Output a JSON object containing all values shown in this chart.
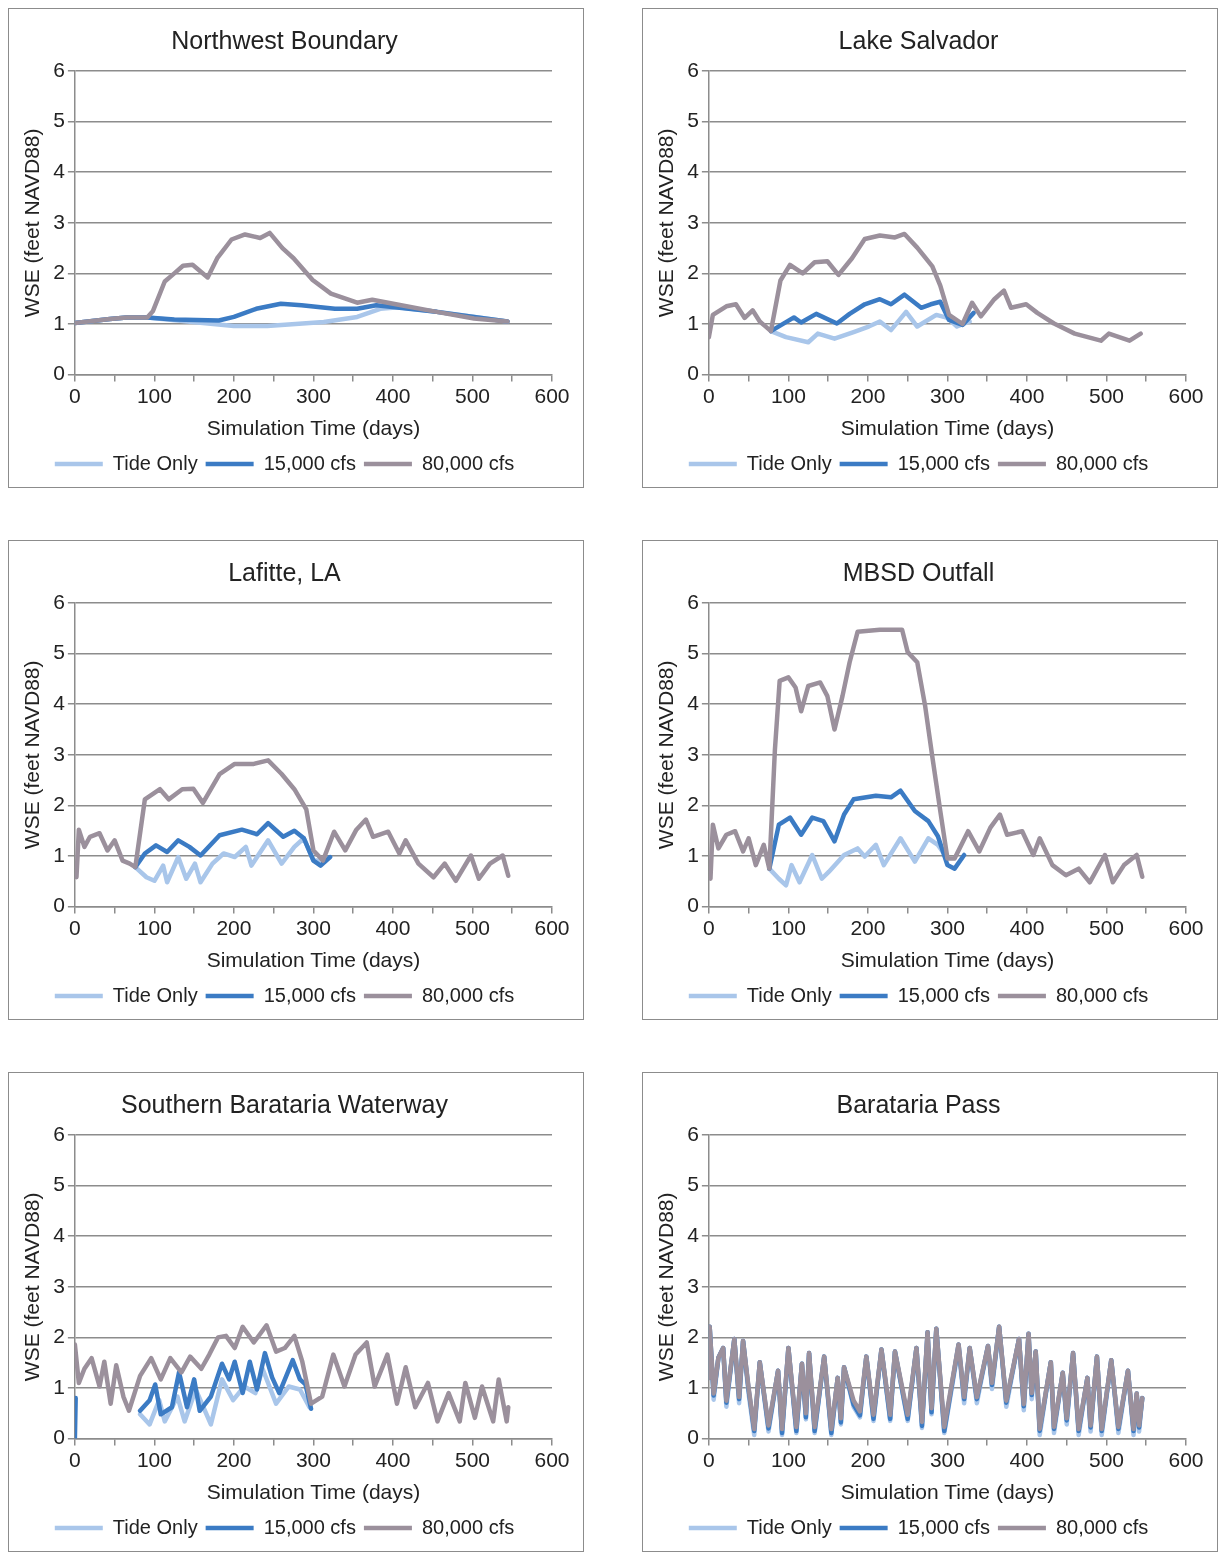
{
  "chart_data": [
    {
      "type": "line",
      "title": "Northwest Boundary",
      "xlabel": "Simulation Time (days)",
      "ylabel": "WSE (feet NAVD88)",
      "xlim": [
        0,
        600
      ],
      "xticks": [
        0,
        {
          "value": 50,
          "label": null
        },
        100,
        {
          "value": 150,
          "label": null
        },
        200,
        {
          "value": 250,
          "label": null
        },
        300,
        {
          "value": 350,
          "label": null
        },
        400,
        {
          "value": 450,
          "label": null
        },
        500,
        {
          "value": 550,
          "label": null
        },
        600
      ],
      "ylim": [
        0,
        6
      ],
      "yticks": [
        0,
        1,
        2,
        3,
        4,
        5,
        6
      ],
      "grid": "y",
      "legend": "bottom",
      "series": [
        {
          "name": "Tide Only",
          "color": "#a9c6ea",
          "x": [
            0,
            44,
            65,
            91,
            148,
            200,
            242,
            313,
            355,
            384,
            407,
            455,
            544
          ],
          "values": [
            1.02,
            1.1,
            1.13,
            1.13,
            1.04,
            0.96,
            0.96,
            1.04,
            1.14,
            1.3,
            1.33,
            1.24,
            1.05
          ]
        },
        {
          "name": "15,000 cfs",
          "color": "#3b7bc4",
          "x": [
            0,
            44,
            65,
            91,
            125,
            181,
            200,
            228,
            259,
            285,
            327,
            355,
            379,
            455,
            544
          ],
          "values": [
            1.02,
            1.1,
            1.13,
            1.13,
            1.09,
            1.07,
            1.14,
            1.3,
            1.4,
            1.37,
            1.3,
            1.3,
            1.37,
            1.24,
            1.05
          ]
        },
        {
          "name": "80,000 cfs",
          "color": "#9b909c",
          "x": [
            0,
            44,
            65,
            91,
            98,
            113,
            125,
            136,
            148,
            167,
            179,
            197,
            214,
            233,
            245,
            261,
            275,
            299,
            322,
            355,
            374,
            407,
            455,
            502,
            544
          ],
          "values": [
            1.02,
            1.1,
            1.13,
            1.13,
            1.25,
            1.84,
            2.0,
            2.15,
            2.17,
            1.92,
            2.3,
            2.67,
            2.77,
            2.7,
            2.8,
            2.5,
            2.3,
            1.87,
            1.6,
            1.42,
            1.48,
            1.38,
            1.24,
            1.11,
            1.05
          ]
        }
      ]
    },
    {
      "type": "line",
      "title": "Lake Salvador",
      "xlabel": "Simulation Time (days)",
      "ylabel": "WSE (feet NAVD88)",
      "xlim": [
        0,
        600
      ],
      "xticks": [
        0,
        {
          "value": 50,
          "label": null
        },
        100,
        {
          "value": 150,
          "label": null
        },
        200,
        {
          "value": 250,
          "label": null
        },
        300,
        {
          "value": 350,
          "label": null
        },
        400,
        {
          "value": 450,
          "label": null
        },
        500,
        {
          "value": 550,
          "label": null
        },
        600
      ],
      "ylim": [
        0,
        6
      ],
      "yticks": [
        0,
        1,
        2,
        3,
        4,
        5,
        6
      ],
      "grid": "y",
      "legend": "bottom",
      "series": [
        {
          "name": "Tide Only",
          "color": "#a9c6ea",
          "x": [
            78,
            97,
            125,
            137,
            158,
            182,
            201,
            215,
            229,
            248,
            262,
            286,
            300,
            312,
            328
          ],
          "values": [
            0.86,
            0.74,
            0.64,
            0.81,
            0.71,
            0.84,
            0.95,
            1.05,
            0.88,
            1.24,
            0.95,
            1.18,
            1.12,
            0.95,
            1.05
          ]
        },
        {
          "name": "15,000 cfs",
          "color": "#3b7bc4",
          "x": [
            78,
            107,
            116,
            135,
            161,
            177,
            196,
            215,
            229,
            246,
            267,
            279,
            291,
            302,
            319,
            333
          ],
          "values": [
            0.86,
            1.13,
            1.03,
            1.2,
            1.01,
            1.2,
            1.39,
            1.49,
            1.39,
            1.58,
            1.32,
            1.39,
            1.44,
            1.08,
            0.98,
            1.22
          ]
        },
        {
          "name": "80,000 cfs",
          "color": "#9b909c",
          "x": [
            0,
            5,
            22,
            34,
            45,
            55,
            64,
            78,
            90,
            102,
            118,
            133,
            149,
            163,
            180,
            196,
            215,
            234,
            246,
            262,
            281,
            291,
            302,
            319,
            331,
            342,
            359,
            371,
            380,
            399,
            413,
            434,
            460,
            493,
            503,
            529,
            543
          ],
          "values": [
            0.74,
            1.18,
            1.35,
            1.39,
            1.12,
            1.27,
            1.05,
            0.86,
            1.86,
            2.17,
            2.0,
            2.22,
            2.24,
            1.97,
            2.3,
            2.68,
            2.75,
            2.71,
            2.78,
            2.51,
            2.14,
            1.76,
            1.18,
            1.0,
            1.42,
            1.15,
            1.49,
            1.66,
            1.32,
            1.39,
            1.22,
            1.01,
            0.81,
            0.67,
            0.81,
            0.67,
            0.81
          ]
        }
      ]
    },
    {
      "type": "line",
      "title": "Lafitte, LA",
      "xlabel": "Simulation Time (days)",
      "ylabel": "WSE (feet NAVD88)",
      "xlim": [
        0,
        600
      ],
      "xticks": [
        0,
        {
          "value": 50,
          "label": null
        },
        100,
        {
          "value": 150,
          "label": null
        },
        200,
        {
          "value": 250,
          "label": null
        },
        300,
        {
          "value": 350,
          "label": null
        },
        400,
        {
          "value": 450,
          "label": null
        },
        500,
        {
          "value": 550,
          "label": null
        },
        600
      ],
      "ylim": [
        0,
        6
      ],
      "yticks": [
        0,
        1,
        2,
        3,
        4,
        5,
        6
      ],
      "grid": "y",
      "legend": "bottom",
      "series": [
        {
          "name": "Tide Only",
          "color": "#a9c6ea",
          "x": [
            76,
            90,
            100,
            111,
            116,
            130,
            140,
            151,
            158,
            173,
            187,
            201,
            215,
            222,
            243,
            260,
            276,
            288,
            300,
            312
          ],
          "values": [
            0.78,
            0.58,
            0.51,
            0.81,
            0.48,
            0.98,
            0.55,
            0.85,
            0.48,
            0.85,
            1.05,
            0.98,
            1.18,
            0.81,
            1.31,
            0.85,
            1.18,
            1.35,
            0.91,
            0.91
          ]
        },
        {
          "name": "15,000 cfs",
          "color": "#3b7bc4",
          "x": [
            76,
            88,
            102,
            116,
            130,
            144,
            158,
            182,
            210,
            229,
            243,
            262,
            276,
            288,
            300,
            309,
            321
          ],
          "values": [
            0.78,
            1.05,
            1.21,
            1.08,
            1.31,
            1.18,
            1.01,
            1.41,
            1.52,
            1.43,
            1.65,
            1.38,
            1.5,
            1.35,
            0.91,
            0.81,
            0.98
          ]
        },
        {
          "name": "80,000 cfs",
          "color": "#9b909c",
          "x": [
            2,
            5,
            12,
            19,
            31,
            41,
            50,
            60,
            69,
            76,
            88,
            107,
            118,
            135,
            149,
            161,
            182,
            201,
            225,
            243,
            260,
            276,
            291,
            300,
            312,
            326,
            340,
            354,
            366,
            375,
            394,
            408,
            416,
            432,
            451,
            465,
            479,
            498,
            508,
            522,
            538,
            545
          ],
          "values": [
            0.58,
            1.52,
            1.18,
            1.38,
            1.45,
            1.11,
            1.31,
            0.91,
            0.85,
            0.78,
            2.12,
            2.32,
            2.12,
            2.32,
            2.33,
            2.05,
            2.62,
            2.82,
            2.82,
            2.89,
            2.62,
            2.32,
            1.92,
            1.11,
            0.91,
            1.48,
            1.11,
            1.52,
            1.72,
            1.38,
            1.48,
            1.05,
            1.31,
            0.85,
            0.58,
            0.85,
            0.51,
            1.01,
            0.55,
            0.85,
            1.01,
            0.61
          ]
        }
      ]
    },
    {
      "type": "line",
      "title": "MBSD Outfall",
      "xlabel": "Simulation Time (days)",
      "ylabel": "WSE (feet NAVD88)",
      "xlim": [
        0,
        600
      ],
      "xticks": [
        0,
        {
          "value": 50,
          "label": null
        },
        100,
        {
          "value": 150,
          "label": null
        },
        200,
        {
          "value": 250,
          "label": null
        },
        300,
        {
          "value": 350,
          "label": null
        },
        400,
        {
          "value": 450,
          "label": null
        },
        500,
        {
          "value": 550,
          "label": null
        },
        600
      ],
      "ylim": [
        0,
        6
      ],
      "yticks": [
        0,
        1,
        2,
        3,
        4,
        5,
        6
      ],
      "grid": "y",
      "legend": "bottom",
      "series": [
        {
          "name": "Tide Only",
          "color": "#a9c6ea",
          "x": [
            76,
            88,
            97,
            104,
            114,
            130,
            142,
            151,
            170,
            187,
            196,
            210,
            220,
            241,
            259,
            276,
            288,
            300
          ],
          "values": [
            0.75,
            0.55,
            0.42,
            0.82,
            0.48,
            1.02,
            0.55,
            0.69,
            1.02,
            1.15,
            0.99,
            1.22,
            0.82,
            1.35,
            0.89,
            1.35,
            1.22,
            0.95
          ]
        },
        {
          "name": "15,000 cfs",
          "color": "#3b7bc4",
          "x": [
            76,
            88,
            102,
            116,
            130,
            144,
            158,
            170,
            182,
            210,
            229,
            241,
            259,
            276,
            288,
            300,
            309,
            321
          ],
          "values": [
            0.75,
            1.62,
            1.76,
            1.42,
            1.76,
            1.69,
            1.29,
            1.82,
            2.12,
            2.19,
            2.16,
            2.29,
            1.89,
            1.69,
            1.39,
            0.82,
            0.75,
            1.02
          ]
        },
        {
          "name": "80,000 cfs",
          "color": "#9b909c",
          "x": [
            2,
            5,
            12,
            22,
            33,
            43,
            50,
            59,
            69,
            76,
            83,
            89,
            100,
            109,
            116,
            125,
            140,
            149,
            158,
            168,
            177,
            187,
            215,
            243,
            250,
            262,
            272,
            281,
            291,
            300,
            309,
            326,
            340,
            354,
            366,
            375,
            394,
            408,
            416,
            432,
            449,
            465,
            479,
            498,
            508,
            522,
            538,
            545
          ],
          "values": [
            0.55,
            1.62,
            1.15,
            1.42,
            1.49,
            1.09,
            1.35,
            0.82,
            1.22,
            0.75,
            3.09,
            4.46,
            4.53,
            4.33,
            3.86,
            4.36,
            4.43,
            4.16,
            3.5,
            4.16,
            4.83,
            5.43,
            5.47,
            5.47,
            5.03,
            4.83,
            3.96,
            2.96,
            1.89,
            0.95,
            0.95,
            1.49,
            1.09,
            1.56,
            1.82,
            1.42,
            1.49,
            1.02,
            1.35,
            0.82,
            0.62,
            0.75,
            0.48,
            1.02,
            0.48,
            0.82,
            1.02,
            0.59
          ]
        }
      ]
    },
    {
      "type": "line",
      "title": "Southern Barataria Waterway",
      "xlabel": "Simulation Time (days)",
      "ylabel": "WSE (feet NAVD88)",
      "xlim": [
        0,
        600
      ],
      "xticks": [
        0,
        {
          "value": 50,
          "label": null
        },
        100,
        {
          "value": 150,
          "label": null
        },
        200,
        {
          "value": 250,
          "label": null
        },
        300,
        {
          "value": 350,
          "label": null
        },
        400,
        {
          "value": 450,
          "label": null
        },
        500,
        {
          "value": 550,
          "label": null
        },
        600
      ],
      "ylim": [
        0,
        6
      ],
      "yticks": [
        0,
        1,
        2,
        3,
        4,
        5,
        6
      ],
      "grid": "y",
      "legend": "bottom",
      "series": [
        {
          "name": "Tide Only",
          "color": "#a9c6ea",
          "x": [
            82,
            94,
            106,
            113,
            129,
            138,
            152,
            171,
            185,
            199,
            213,
            227,
            236,
            253,
            269,
            283,
            295
          ],
          "values": [
            0.48,
            0.28,
            0.76,
            0.34,
            0.83,
            0.34,
            0.97,
            0.28,
            1.17,
            0.76,
            1.03,
            0.9,
            1.38,
            0.69,
            1.03,
            0.97,
            0.62
          ]
        },
        {
          "name": "15,000 cfs",
          "color": "#3b7bc4",
          "x": [
            0,
            1,
            2,
            82,
            94,
            101,
            108,
            122,
            131,
            141,
            150,
            157,
            171,
            185,
            194,
            201,
            211,
            220,
            229,
            239,
            248,
            257,
            274,
            283,
            290,
            297
          ],
          "values": [
            0,
            0.8,
            null,
            0.55,
            0.76,
            1.07,
            0.48,
            0.62,
            1.31,
            0.62,
            1.17,
            0.55,
            0.83,
            1.48,
            1.17,
            1.52,
            0.9,
            1.52,
            0.97,
            1.69,
            1.21,
            0.9,
            1.55,
            1.17,
            1.07,
            0.59
          ]
        },
        {
          "name": "80,000 cfs",
          "color": "#9b909c",
          "x": [
            0,
            5,
            12,
            21,
            31,
            37,
            45,
            52,
            61,
            68,
            82,
            96,
            108,
            120,
            134,
            145,
            159,
            169,
            180,
            190,
            201,
            211,
            225,
            241,
            253,
            264,
            276,
            286,
            297,
            311,
            325,
            339,
            353,
            367,
            377,
            393,
            405,
            416,
            428,
            444,
            456,
            470,
            484,
            491,
            503,
            512,
            526,
            533,
            543,
            545
          ],
          "values": [
            1.86,
            1.1,
            1.38,
            1.59,
            1.03,
            1.52,
            0.69,
            1.45,
            0.83,
            0.55,
            1.24,
            1.59,
            1.17,
            1.59,
            1.31,
            1.62,
            1.38,
            1.66,
            2.0,
            2.03,
            1.79,
            2.21,
            1.9,
            2.24,
            1.72,
            1.79,
            2.03,
            1.52,
            0.69,
            0.83,
            1.66,
            1.03,
            1.66,
            1.9,
            1.03,
            1.66,
            0.69,
            1.41,
            0.62,
            1.1,
            0.34,
            0.9,
            0.34,
            1.1,
            0.41,
            1.03,
            0.34,
            1.17,
            0.34,
            0.62
          ]
        }
      ]
    },
    {
      "type": "line",
      "title": "Barataria Pass",
      "xlabel": "Simulation Time (days)",
      "ylabel": "WSE (feet NAVD88)",
      "xlim": [
        0,
        600
      ],
      "xticks": [
        0,
        {
          "value": 50,
          "label": null
        },
        100,
        {
          "value": 150,
          "label": null
        },
        200,
        {
          "value": 250,
          "label": null
        },
        300,
        {
          "value": 350,
          "label": null
        },
        400,
        {
          "value": 450,
          "label": null
        },
        500,
        {
          "value": 550,
          "label": null
        },
        600
      ],
      "ylim": [
        0,
        6
      ],
      "yticks": [
        0,
        1,
        2,
        3,
        4,
        5,
        6
      ],
      "grid": "y",
      "legend": "bottom",
      "series": [
        {
          "name": "Tide Only",
          "color": "#a9c6ea",
          "x": [
            0,
            1,
            6,
            12,
            18,
            22,
            32,
            38,
            43,
            50,
            57,
            64,
            75,
            87,
            92,
            100,
            110,
            117,
            122,
            126,
            133,
            145,
            154,
            162,
            166,
            170,
            182,
            190,
            198,
            207,
            217,
            228,
            234,
            250,
            261,
            268,
            275,
            280,
            286,
            296,
            314,
            321,
            328,
            337,
            351,
            356,
            365,
            374,
            390,
            396,
            402,
            406,
            411,
            416,
            430,
            434,
            445,
            450,
            458,
            465,
            476,
            480,
            488,
            494,
            506,
            515,
            527,
            534,
            538,
            541,
            545
          ],
          "values": [
            1.2,
            2.21,
            0.77,
            1.6,
            1.79,
            0.63,
            1.97,
            0.7,
            1.93,
            0.88,
            0.07,
            1.51,
            0.14,
            1.34,
            0.07,
            1.79,
            0.11,
            1.48,
            0.38,
            1.69,
            0.11,
            1.62,
            0.07,
            1.2,
            0.28,
            1.41,
            0.63,
            0.42,
            1.62,
            0.35,
            1.76,
            0.35,
            1.72,
            0.35,
            1.79,
            0.21,
            2.1,
            0.48,
            2.17,
            0.11,
            1.8,
            0.7,
            1.79,
            0.7,
            1.83,
            0.98,
            2.21,
            0.63,
            1.97,
            0.56,
            2.07,
            0.78,
            1.72,
            0.07,
            1.51,
            0.11,
            1.3,
            0.28,
            1.69,
            0.07,
            1.2,
            0.14,
            1.62,
            0.07,
            1.55,
            0.11,
            1.34,
            0.07,
            0.84,
            0.14,
            0.8
          ]
        },
        {
          "name": "15,000 cfs",
          "color": "#3b7bc4",
          "x": [
            0,
            1,
            6,
            12,
            18,
            22,
            32,
            38,
            43,
            50,
            57,
            64,
            75,
            87,
            92,
            100,
            110,
            117,
            122,
            126,
            133,
            145,
            154,
            162,
            166,
            170,
            182,
            190,
            198,
            207,
            217,
            228,
            234,
            250,
            261,
            268,
            275,
            280,
            286,
            296,
            314,
            321,
            328,
            337,
            351,
            356,
            365,
            374,
            390,
            396,
            402,
            406,
            411,
            416,
            430,
            434,
            445,
            450,
            458,
            465,
            476,
            480,
            488,
            494,
            506,
            515,
            527,
            534,
            538,
            541,
            545
          ],
          "values": [
            1.2,
            2.21,
            0.85,
            1.6,
            1.79,
            0.71,
            1.97,
            0.78,
            1.93,
            0.96,
            0.15,
            1.51,
            0.2,
            1.34,
            0.11,
            1.79,
            0.15,
            1.48,
            0.42,
            1.69,
            0.15,
            1.62,
            0.11,
            1.2,
            0.32,
            1.41,
            0.67,
            0.46,
            1.62,
            0.39,
            1.76,
            0.39,
            1.72,
            0.39,
            1.79,
            0.25,
            2.1,
            0.52,
            2.17,
            0.15,
            1.86,
            0.78,
            1.79,
            0.78,
            1.83,
            1.06,
            2.21,
            0.71,
            1.97,
            0.64,
            2.07,
            0.86,
            1.72,
            0.15,
            1.51,
            0.19,
            1.3,
            0.36,
            1.69,
            0.15,
            1.2,
            0.22,
            1.62,
            0.15,
            1.55,
            0.19,
            1.34,
            0.15,
            0.89,
            0.22,
            0.8
          ]
        },
        {
          "name": "80,000 cfs",
          "color": "#9b909c",
          "x": [
            0,
            1,
            6,
            12,
            18,
            22,
            32,
            38,
            43,
            50,
            57,
            64,
            75,
            87,
            92,
            100,
            110,
            117,
            122,
            126,
            133,
            145,
            154,
            162,
            166,
            170,
            182,
            190,
            198,
            207,
            217,
            228,
            234,
            250,
            261,
            268,
            275,
            280,
            286,
            296,
            314,
            321,
            328,
            337,
            351,
            356,
            365,
            374,
            390,
            396,
            402,
            406,
            411,
            416,
            430,
            434,
            445,
            450,
            458,
            465,
            476,
            480,
            488,
            494,
            506,
            515,
            527,
            534,
            538,
            541,
            545
          ],
          "values": [
            1.2,
            2.21,
            0.89,
            1.6,
            1.79,
            0.75,
            1.97,
            0.82,
            1.93,
            1.0,
            0.19,
            1.51,
            0.26,
            1.34,
            0.19,
            1.79,
            0.23,
            1.48,
            0.5,
            1.69,
            0.23,
            1.62,
            0.19,
            1.2,
            0.4,
            1.41,
            0.75,
            0.54,
            1.62,
            0.47,
            1.76,
            0.47,
            1.72,
            0.47,
            1.79,
            0.33,
            2.1,
            0.6,
            2.17,
            0.23,
            1.86,
            0.82,
            1.79,
            0.82,
            1.83,
            1.1,
            2.21,
            0.75,
            1.97,
            0.68,
            2.07,
            0.9,
            1.72,
            0.19,
            1.51,
            0.23,
            1.3,
            0.4,
            1.69,
            0.19,
            1.2,
            0.26,
            1.62,
            0.19,
            1.55,
            0.23,
            1.34,
            0.19,
            0.89,
            0.26,
            0.8
          ]
        }
      ]
    }
  ]
}
